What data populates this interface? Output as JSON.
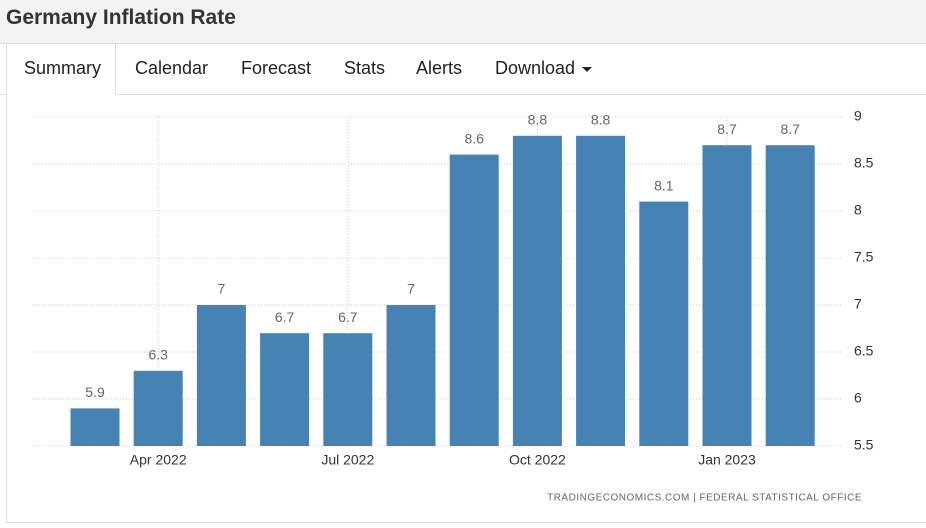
{
  "header": {
    "title": "Germany Inflation Rate"
  },
  "tabs": [
    "Summary",
    "Calendar",
    "Forecast",
    "Stats",
    "Alerts",
    "Download"
  ],
  "chart_data": {
    "type": "bar",
    "categories": [
      null,
      "Apr 2022",
      null,
      null,
      "Jul 2022",
      null,
      null,
      "Oct 2022",
      null,
      null,
      "Jan 2023",
      null
    ],
    "values": [
      5.9,
      6.3,
      7,
      6.7,
      6.7,
      7,
      8.6,
      8.8,
      8.8,
      8.1,
      8.7,
      8.7
    ],
    "color": "#4682b4",
    "ylim": [
      5.5,
      9
    ],
    "yticks": [
      5.5,
      6,
      6.5,
      7,
      7.5,
      8,
      8.5,
      9
    ],
    "grid": true,
    "source": "TRADINGECONOMICS.COM | FEDERAL STATISTICAL OFFICE"
  }
}
